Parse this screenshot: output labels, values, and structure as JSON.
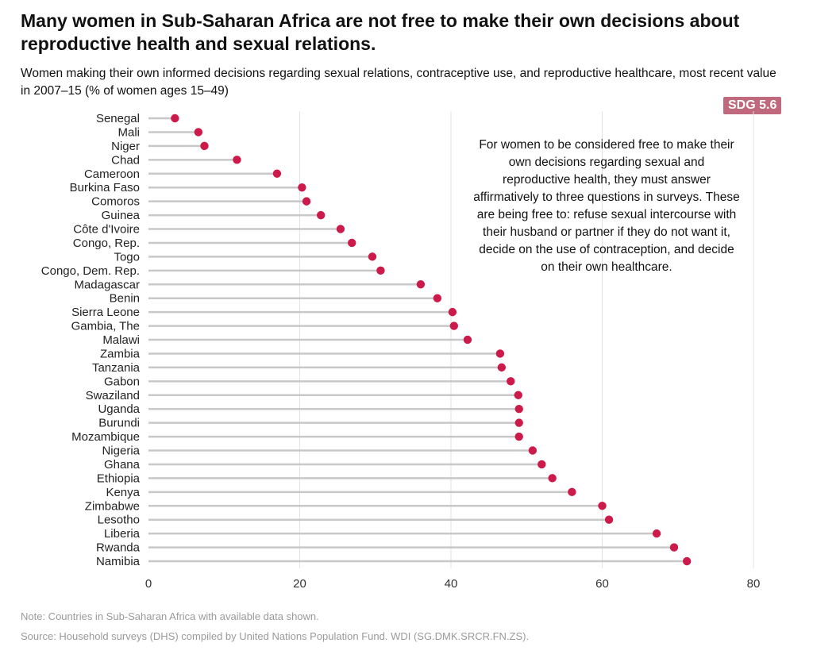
{
  "title": "Many women in Sub-Saharan Africa are not free to make their own decisions about reproductive health and sexual relations.",
  "subtitle": "Women making their own informed decisions regarding sexual relations, contraceptive use, and reproductive healthcare, most recent value in 2007–15 (% of women ages 15–49)",
  "badge": "SDG 5.6",
  "annotation": "For women to be considered free to make their own decisions regarding sexual and reproductive health, they must answer affirmatively to three questions in surveys. These are being free to: refuse sexual intercourse with their husband or partner if they do not want it, decide on the use of contraception, and decide on their own healthcare.",
  "note": "Note: Countries in Sub-Saharan Africa with available data shown.",
  "source": "Source: Household surveys (DHS) compiled by United Nations Population Fund. WDI (SG.DMK.SRCR.FN.ZS).",
  "colors": {
    "dot": "#cc1a4a",
    "stem": "#c8c8c8",
    "grid": "#e3e3e3",
    "badge": "#c0687c"
  },
  "chart_data": {
    "type": "scatter",
    "style": "lollipop",
    "categories": [
      "Senegal",
      "Mali",
      "Niger",
      "Chad",
      "Cameroon",
      "Burkina Faso",
      "Comoros",
      "Guinea",
      "Côte d'Ivoire",
      "Congo, Rep.",
      "Togo",
      "Congo, Dem. Rep.",
      "Madagascar",
      "Benin",
      "Sierra Leone",
      "Gambia, The",
      "Malawi",
      "Zambia",
      "Tanzania",
      "Gabon",
      "Swaziland",
      "Uganda",
      "Burundi",
      "Mozambique",
      "Nigeria",
      "Ghana",
      "Ethiopia",
      "Kenya",
      "Zimbabwe",
      "Lesotho",
      "Liberia",
      "Rwanda",
      "Namibia"
    ],
    "values": [
      3.5,
      6.6,
      7.4,
      11.7,
      17.0,
      20.3,
      20.9,
      22.8,
      25.4,
      26.9,
      29.6,
      30.7,
      36.0,
      38.2,
      40.2,
      40.4,
      42.2,
      46.5,
      46.7,
      47.9,
      48.9,
      49.0,
      49.0,
      49.0,
      50.8,
      52.0,
      53.4,
      56.0,
      60.0,
      60.9,
      67.2,
      69.5,
      71.2
    ],
    "xticks": [
      "0",
      "20",
      "40",
      "60",
      "80"
    ],
    "xlim": [
      0,
      80
    ],
    "grid": true,
    "xlabel": "",
    "ylabel": ""
  }
}
